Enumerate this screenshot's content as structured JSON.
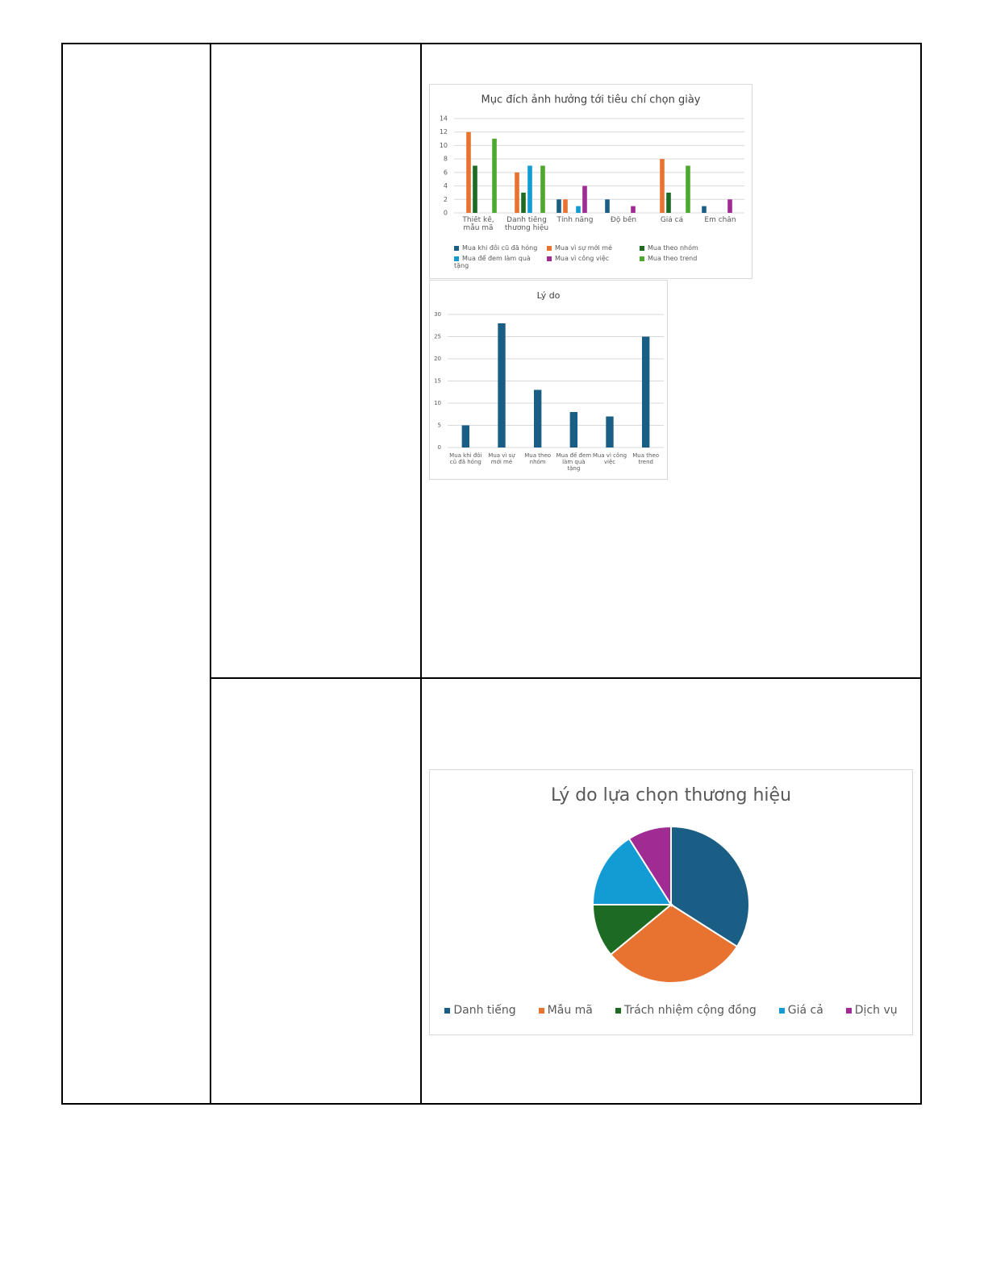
{
  "chart_data": [
    {
      "type": "bar",
      "title": "Mục đích ảnh hưởng tới tiêu chí chọn giày",
      "categories": [
        "Thiết kế, mẫu mã",
        "Danh tiếng thương hiệu",
        "Tính năng",
        "Độ bền",
        "Giá cả",
        "Êm chân"
      ],
      "series": [
        {
          "name": "Mua khi đôi cũ đã hỏng",
          "color": "#1a5e85",
          "values": [
            0,
            0,
            2,
            2,
            0,
            1
          ]
        },
        {
          "name": "Mua vì sự mới mẻ",
          "color": "#e8722f",
          "values": [
            12,
            6,
            2,
            0,
            8,
            0
          ]
        },
        {
          "name": "Mua theo nhóm",
          "color": "#1d6b22",
          "values": [
            7,
            3,
            0,
            0,
            3,
            0
          ]
        },
        {
          "name": "Mua để đem làm quà tặng",
          "color": "#139bd4",
          "values": [
            0,
            7,
            1,
            0,
            0,
            0
          ]
        },
        {
          "name": "Mua vì công việc",
          "color": "#a02b93",
          "values": [
            0,
            0,
            4,
            1,
            0,
            2
          ]
        },
        {
          "name": "Mua theo trend",
          "color": "#4ea72e",
          "values": [
            11,
            7,
            0,
            0,
            7,
            0
          ]
        }
      ],
      "ylim": [
        0,
        14
      ],
      "yticks": [
        0,
        2,
        4,
        6,
        8,
        10,
        12,
        14
      ],
      "grid": true,
      "legend": "bottom"
    },
    {
      "type": "bar",
      "title": "Lý do",
      "categories": [
        "Mua khi đôi cũ đã hỏng",
        "Mua vì sự mới mẻ",
        "Mua theo nhóm",
        "Mua để đem làm quà tặng",
        "Mua vì công việc",
        "Mua theo trend"
      ],
      "values": [
        5,
        28,
        13,
        8,
        7,
        25
      ],
      "color": "#1a5e85",
      "ylim": [
        0,
        30
      ],
      "yticks": [
        0,
        5,
        10,
        15,
        20,
        25,
        30
      ],
      "grid": true
    },
    {
      "type": "pie",
      "title": "Lý do lựa chọn thương hiệu",
      "categories": [
        "Danh tiếng",
        "Mẫu mã",
        "Trách nhiệm cộng đồng",
        "Giá cả",
        "Dịch vụ"
      ],
      "values": [
        34,
        30,
        11,
        16,
        9
      ],
      "colors": [
        "#1a5e85",
        "#e8722f",
        "#1d6b22",
        "#139bd4",
        "#a02b93"
      ],
      "legend": "bottom"
    }
  ]
}
